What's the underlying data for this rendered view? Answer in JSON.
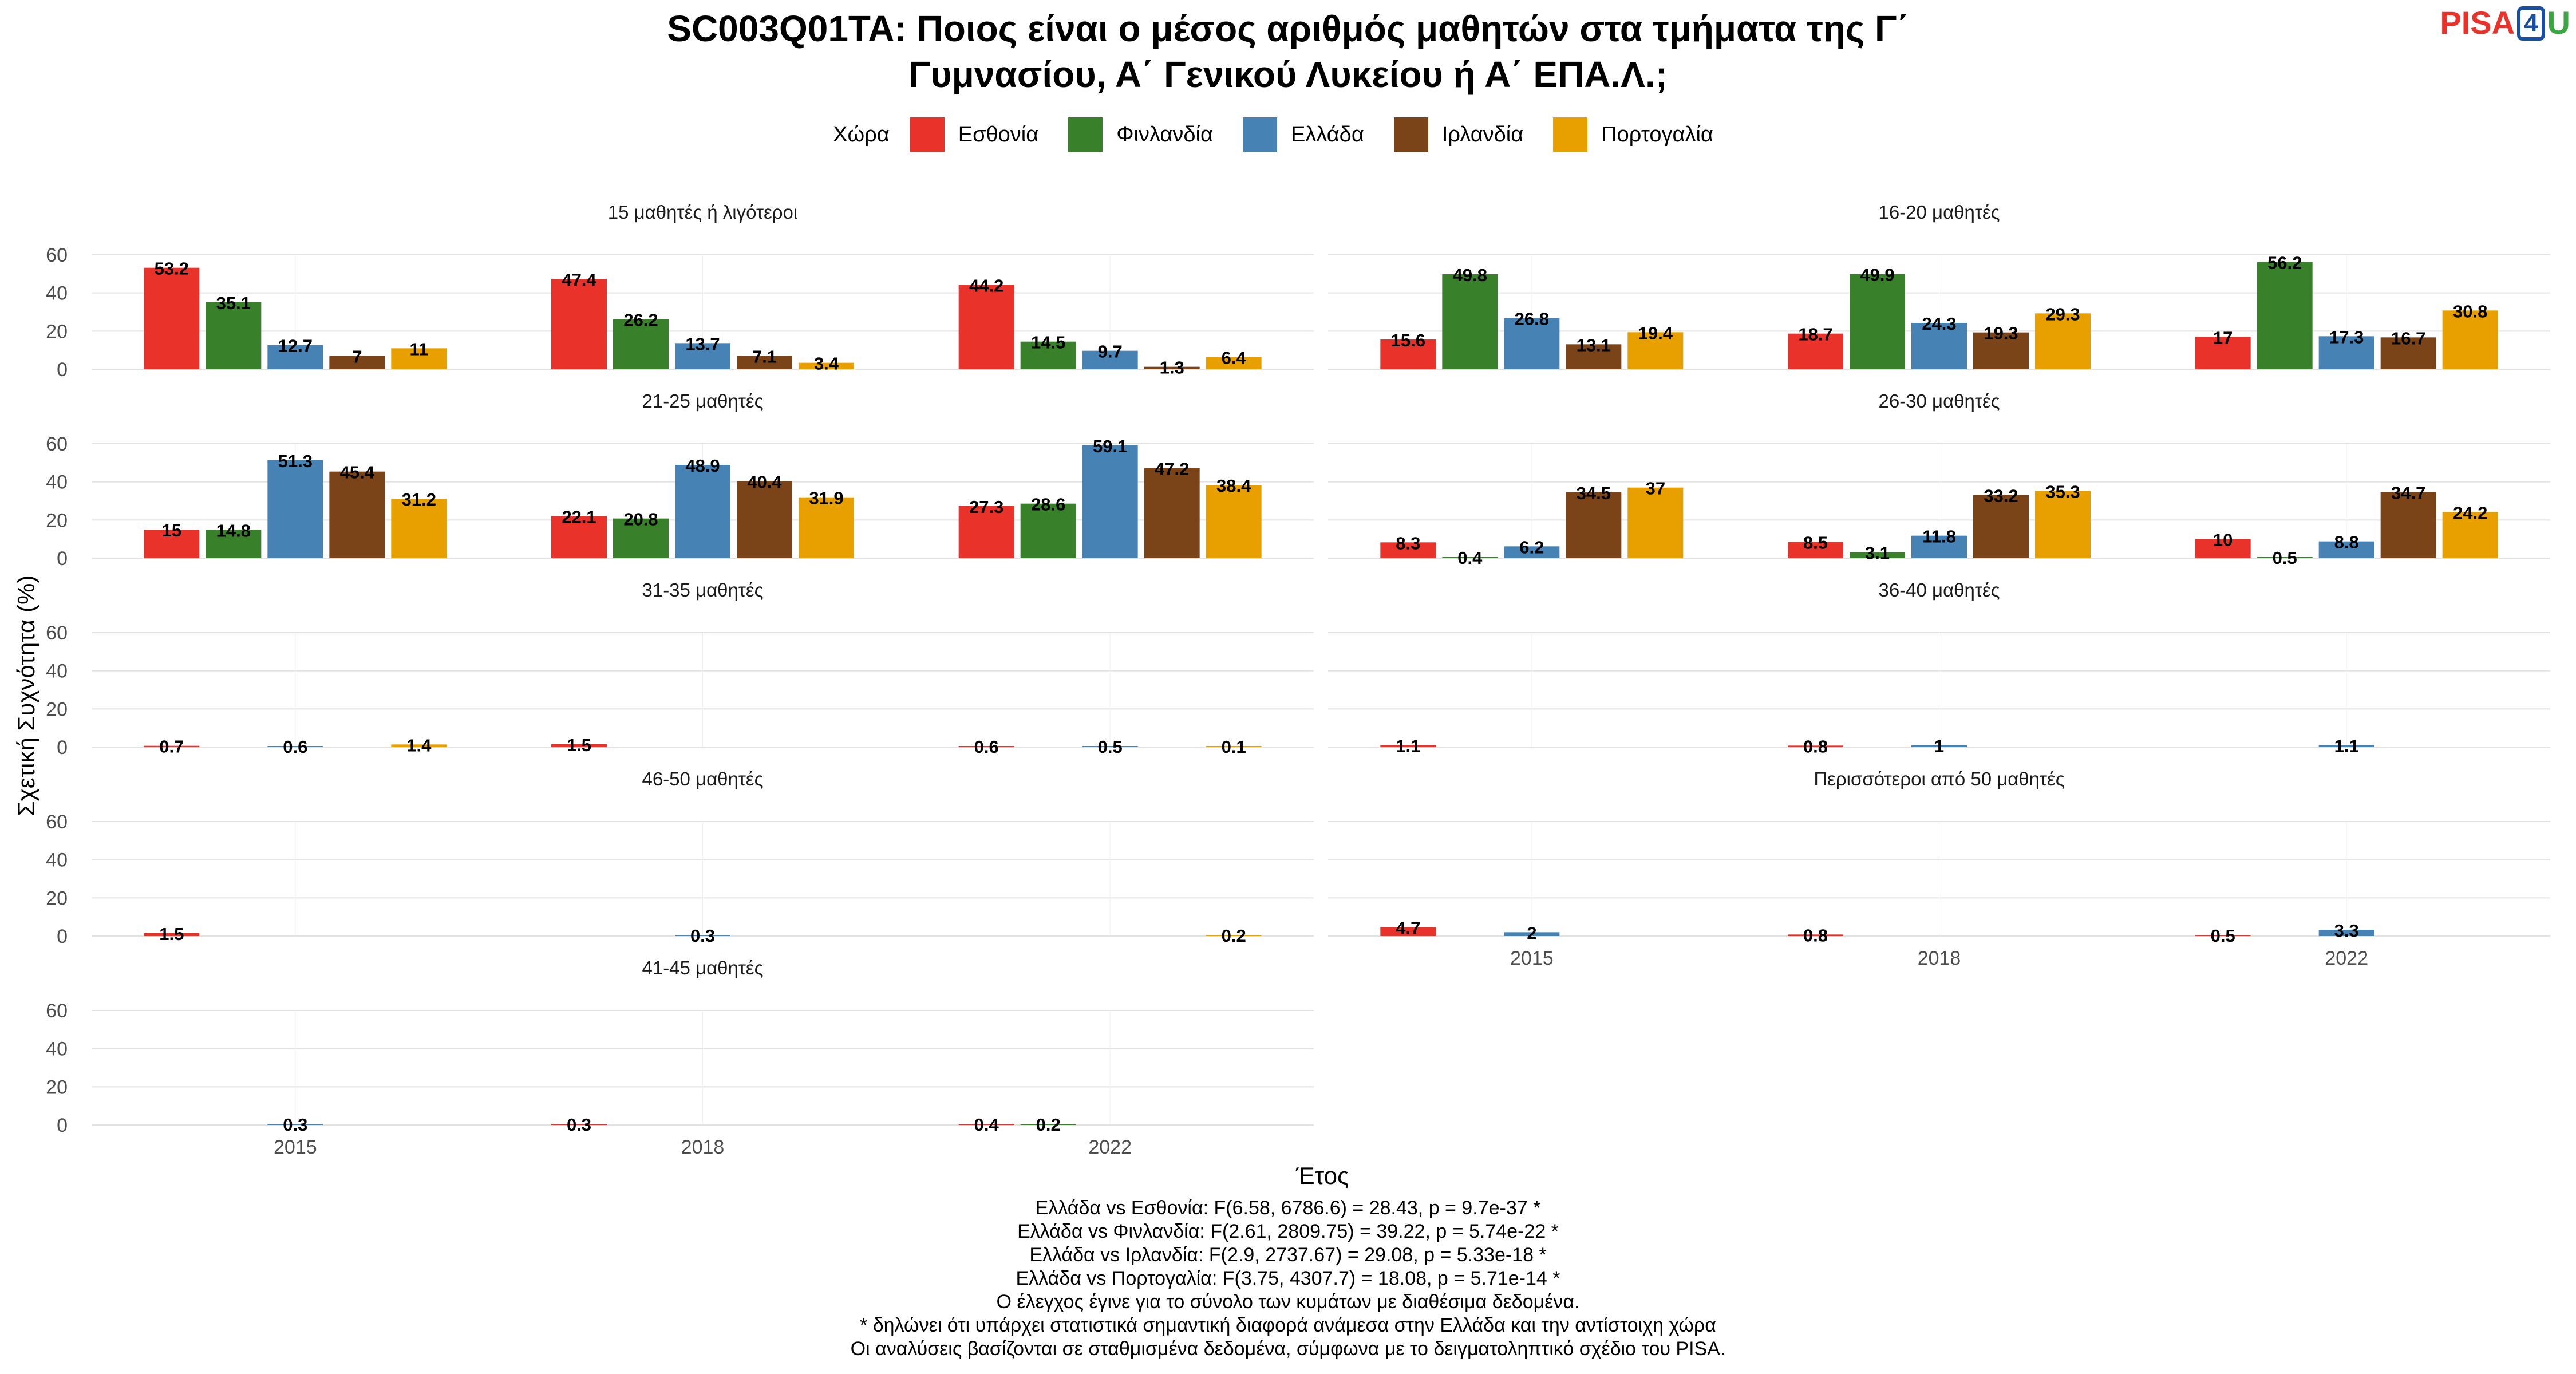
{
  "title_lines": [
    "SC003Q01TA: Ποιος είναι ο μέσος αριθμός μαθητών στα τμήματα της Γ΄",
    "Γυμνασίου, Α΄ Γενικού Λυκείου ή Α΄ ΕΠΑ.Λ.;"
  ],
  "logo": {
    "part1": "PISA",
    "part2": "4",
    "part3": "U"
  },
  "legend": {
    "title": "Χώρα",
    "items": [
      {
        "name": "Εσθονία",
        "color": "#e8322a"
      },
      {
        "name": "Φινλανδία",
        "color": "#38812a"
      },
      {
        "name": "Ελλάδα",
        "color": "#4682b4"
      },
      {
        "name": "Ιρλανδία",
        "color": "#7b4418"
      },
      {
        "name": "Πορτογαλία",
        "color": "#e8a000"
      }
    ]
  },
  "notes": [
    "Ελλάδα vs Εσθονία: F(6.58, 6786.6) = 28.43, p = 9.7e-37 *",
    "Ελλάδα vs Φινλανδία: F(2.61, 2809.75) = 39.22, p = 5.74e-22 *",
    "Ελλάδα vs Ιρλανδία: F(2.9, 2737.67) = 29.08, p = 5.33e-18 *",
    "Ελλάδα vs Πορτογαλία: F(3.75, 4307.7) = 18.08, p = 5.71e-14 *",
    "Ο έλεγχος έγινε για το σύνολο των κυμάτων με διαθέσιμα δεδομένα.",
    "* δηλώνει ότι υπάρχει στατιστικά σημαντική διαφορά ανάμεσα στην Ελλάδα και την αντίστοιχη χώρα",
    "Οι αναλύσεις βασίζονται σε σταθμισμένα δεδομένα, σύμφωνα με το δειγματοληπτικό σχέδιο του PISA."
  ],
  "chart_data": {
    "type": "bar",
    "xlabel": "Έτος",
    "ylabel": "Σχετική Συχνότητα (%)",
    "ylim": [
      0,
      60
    ],
    "yticks": [
      0,
      20,
      40,
      60
    ],
    "grid": true,
    "legend_position": "top",
    "categories": [
      "2015",
      "2018",
      "2022"
    ],
    "series_names": [
      "Εσθονία",
      "Φινλανδία",
      "Ελλάδα",
      "Ιρλανδία",
      "Πορτογαλία"
    ],
    "panels": [
      {
        "title": "15 μαθητές ή λιγότεροι",
        "values": [
          [
            53.2,
            35.1,
            12.7,
            7,
            11
          ],
          [
            47.4,
            26.2,
            13.7,
            7.1,
            3.4
          ],
          [
            44.2,
            14.5,
            9.7,
            1.3,
            6.4
          ]
        ]
      },
      {
        "title": "16-20 μαθητές",
        "values": [
          [
            15.6,
            49.8,
            26.8,
            13.1,
            19.4
          ],
          [
            18.7,
            49.9,
            24.3,
            19.3,
            29.3
          ],
          [
            17,
            56.2,
            17.3,
            16.7,
            30.8
          ]
        ]
      },
      {
        "title": "21-25 μαθητές",
        "values": [
          [
            15,
            14.8,
            51.3,
            45.4,
            31.2
          ],
          [
            22.1,
            20.8,
            48.9,
            40.4,
            31.9
          ],
          [
            27.3,
            28.6,
            59.1,
            47.2,
            38.4
          ]
        ]
      },
      {
        "title": "26-30 μαθητές",
        "values": [
          [
            8.3,
            0.4,
            6.2,
            34.5,
            37
          ],
          [
            8.5,
            3.1,
            11.8,
            33.2,
            35.3
          ],
          [
            10,
            0.5,
            8.8,
            34.7,
            24.2
          ]
        ]
      },
      {
        "title": "31-35 μαθητές",
        "values": [
          [
            0.7,
            null,
            0.6,
            null,
            1.4
          ],
          [
            1.5,
            null,
            null,
            null,
            null
          ],
          [
            0.6,
            null,
            0.5,
            null,
            0.1
          ]
        ]
      },
      {
        "title": "36-40 μαθητές",
        "values": [
          [
            1.1,
            null,
            null,
            null,
            null
          ],
          [
            0.8,
            null,
            1,
            null,
            null
          ],
          [
            null,
            null,
            1.1,
            null,
            null
          ]
        ]
      },
      {
        "title": "46-50 μαθητές",
        "values": [
          [
            1.5,
            null,
            null,
            null,
            null
          ],
          [
            null,
            null,
            0.3,
            null,
            null
          ],
          [
            null,
            null,
            null,
            null,
            0.2
          ]
        ]
      },
      {
        "title": "Περισσότεροι από 50 μαθητές",
        "values": [
          [
            4.7,
            null,
            2,
            null,
            null
          ],
          [
            0.8,
            null,
            null,
            null,
            null
          ],
          [
            0.5,
            null,
            3.3,
            null,
            null
          ]
        ]
      },
      {
        "title": "41-45 μαθητές",
        "values": [
          [
            null,
            null,
            0.3,
            null,
            null
          ],
          [
            0.3,
            null,
            null,
            null,
            null
          ],
          [
            0.4,
            0.2,
            null,
            null,
            null
          ]
        ]
      }
    ]
  }
}
